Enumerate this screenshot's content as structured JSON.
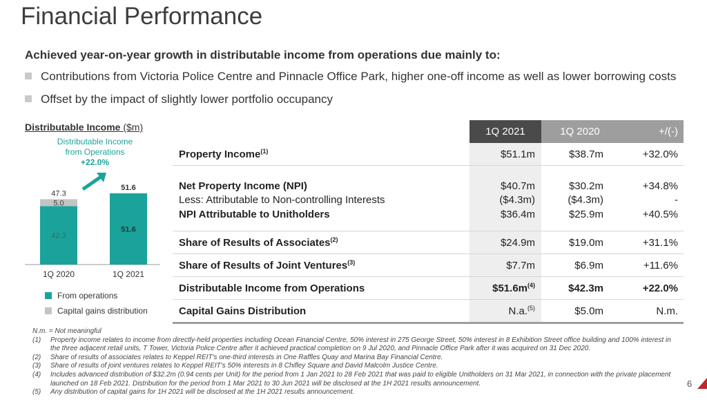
{
  "title": "Financial Performance",
  "subheading": "Achieved year-on-year growth in distributable income from operations due mainly to:",
  "bullets": [
    "Contributions from Victoria Police Centre and Pinnacle Office Park, higher one-off income as well as lower borrowing costs",
    "Offset by the impact of slightly lower portfolio occupancy"
  ],
  "chart": {
    "title": "Distributable Income",
    "unit": " ($m)",
    "annotation_line1": "Distributable Income",
    "annotation_line2": "from Operations",
    "annotation_growth": "+22.0%",
    "legend": [
      {
        "label": "From operations",
        "color": "#1aa39a"
      },
      {
        "label": "Capital gains distribution",
        "color": "#c4c4c4"
      }
    ]
  },
  "chart_data": {
    "type": "bar",
    "stacked": true,
    "title": "Distributable Income ($m)",
    "categories": [
      "1Q 2020",
      "1Q 2021"
    ],
    "series": [
      {
        "name": "From operations",
        "values": [
          42.3,
          51.6
        ],
        "color": "#1aa39a"
      },
      {
        "name": "Capital gains distribution",
        "values": [
          5.0,
          0
        ],
        "color": "#c4c4c4"
      }
    ],
    "totals": [
      47.3,
      51.6
    ],
    "ylim": [
      0,
      60
    ]
  },
  "table": {
    "headers": [
      "1Q 2021",
      "1Q 2020",
      "+/(-)"
    ],
    "rows": [
      {
        "label": "Property Income",
        "sup": "(1)",
        "v1": "$51.1m",
        "v1sup": "",
        "v2": "$38.7m",
        "v3": "+32.0%"
      },
      {
        "label": "Net Property Income (NPI)",
        "sup": "",
        "v1": "$40.7m",
        "v1sup": "",
        "v2": "$30.2m",
        "v3": "+34.8%"
      },
      {
        "label": "Less: Attributable to Non-controlling Interests",
        "sup": "",
        "v1": "($4.3m)",
        "v1sup": "",
        "v2": "($4.3m)",
        "v3": "-"
      },
      {
        "label": "NPI Attributable to Unitholders",
        "sup": "",
        "v1": "$36.4m",
        "v1sup": "",
        "v2": "$25.9m",
        "v3": "+40.5%"
      },
      {
        "label": "Share of Results of Associates",
        "sup": "(2)",
        "v1": "$24.9m",
        "v1sup": "",
        "v2": "$19.0m",
        "v3": "+31.1%"
      },
      {
        "label": "Share of Results of Joint Ventures",
        "sup": "(3)",
        "v1": "$7.7m",
        "v1sup": "",
        "v2": "$6.9m",
        "v3": "+11.6%"
      },
      {
        "label": "Distributable Income from Operations",
        "sup": "",
        "v1": "$51.6m",
        "v1sup": "(4)",
        "v2": "$42.3m",
        "v3": "+22.0%"
      },
      {
        "label": "Capital Gains Distribution",
        "sup": "",
        "v1": "N.a.",
        "v1sup": "(5)",
        "v2": "$5.0m",
        "v3": "N.m."
      }
    ]
  },
  "notes": {
    "nm": "N.m. = Not meaningful",
    "items": [
      {
        "n": "(1)",
        "t": "Property income relates to income from directly-held properties including Ocean Financial Centre, 50% interest in 275 George Street, 50% interest in 8 Exhibition Street office building and 100% interest in the three adjacent retail units, T Tower, Victoria Police Centre after it achieved practical completion on 9 Jul 2020, and Pinnacle Office Park after it was acquired on 31 Dec 2020."
      },
      {
        "n": "(2)",
        "t": "Share of results of associates relates to Keppel REIT's one-third interests in One Raffles Quay and Marina Bay Financial Centre."
      },
      {
        "n": "(3)",
        "t": "Share of results of joint ventures relates to Keppel REIT's 50% interests in 8 Chifley Square and David Malcolm Justice Centre."
      },
      {
        "n": "(4)",
        "t": "Includes advanced distribution of $32.2m (0.94 cents per Unit) for the period from 1 Jan 2021 to 28 Feb 2021 that was paid to eligible Unitholders on 31 Mar 2021, in connection with the private placement launched on 18 Feb 2021. Distribution for the period from 1 Mar 2021 to 30 Jun 2021 will be disclosed at the 1H 2021 results announcement."
      },
      {
        "n": "(5)",
        "t": "Any distribution of capital gains for 1H 2021 will be disclosed at the 1H 2021 results announcement."
      }
    ]
  },
  "page_number": "6"
}
